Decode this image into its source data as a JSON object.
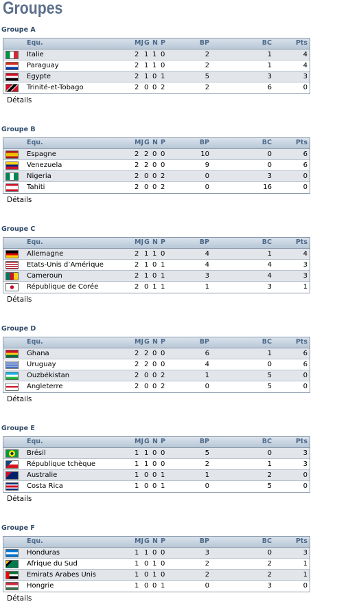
{
  "title": "Groupes",
  "header": [
    "Equ.",
    "MJ",
    "G",
    "N",
    "P",
    "BP",
    "BC",
    "Pts"
  ],
  "details": "Détails",
  "groups": [
    {
      "name": "Groupe A",
      "rows": [
        [
          "Italie",
          2,
          1,
          1,
          0,
          2,
          1,
          4
        ],
        [
          "Paraguay",
          2,
          1,
          1,
          0,
          2,
          1,
          4
        ],
        [
          "Egypte",
          2,
          1,
          0,
          1,
          5,
          3,
          3
        ],
        [
          "Trinité-et-Tobago",
          2,
          0,
          0,
          2,
          2,
          6,
          0
        ]
      ]
    },
    {
      "name": "Groupe B",
      "rows": [
        [
          "Espagne",
          2,
          2,
          0,
          0,
          10,
          0,
          6
        ],
        [
          "Venezuela",
          2,
          2,
          0,
          0,
          9,
          0,
          6
        ],
        [
          "Nigeria",
          2,
          0,
          0,
          2,
          0,
          3,
          0
        ],
        [
          "Tahiti",
          2,
          0,
          0,
          2,
          0,
          16,
          0
        ]
      ]
    },
    {
      "name": "Groupe C",
      "rows": [
        [
          "Allemagne",
          2,
          1,
          1,
          0,
          4,
          1,
          4
        ],
        [
          "Etats-Unis d’Amérique",
          2,
          1,
          0,
          1,
          4,
          4,
          3
        ],
        [
          "Cameroun",
          2,
          1,
          0,
          1,
          3,
          4,
          3
        ],
        [
          "République de Corée",
          2,
          0,
          1,
          1,
          1,
          3,
          1
        ]
      ]
    },
    {
      "name": "Groupe D",
      "rows": [
        [
          "Ghana",
          2,
          2,
          0,
          0,
          6,
          1,
          6
        ],
        [
          "Uruguay",
          2,
          2,
          0,
          0,
          4,
          0,
          6
        ],
        [
          "Ouzbékistan",
          2,
          0,
          0,
          2,
          1,
          5,
          0
        ],
        [
          "Angleterre",
          2,
          0,
          0,
          2,
          0,
          5,
          0
        ]
      ]
    },
    {
      "name": "Groupe E",
      "rows": [
        [
          "Brésil",
          1,
          1,
          0,
          0,
          5,
          0,
          3
        ],
        [
          "République tchèque",
          1,
          1,
          0,
          0,
          2,
          1,
          3
        ],
        [
          "Australie",
          1,
          0,
          0,
          1,
          1,
          2,
          0
        ],
        [
          "Costa Rica",
          1,
          0,
          0,
          1,
          0,
          5,
          0
        ]
      ]
    },
    {
      "name": "Groupe F",
      "rows": [
        [
          "Honduras",
          1,
          1,
          0,
          0,
          3,
          0,
          3
        ],
        [
          "Afrique du Sud",
          1,
          0,
          1,
          0,
          2,
          2,
          1
        ],
        [
          "Emirats Arabes Unis",
          1,
          0,
          1,
          0,
          2,
          2,
          1
        ],
        [
          "Hongrie",
          1,
          0,
          0,
          1,
          0,
          3,
          0
        ]
      ]
    }
  ]
}
